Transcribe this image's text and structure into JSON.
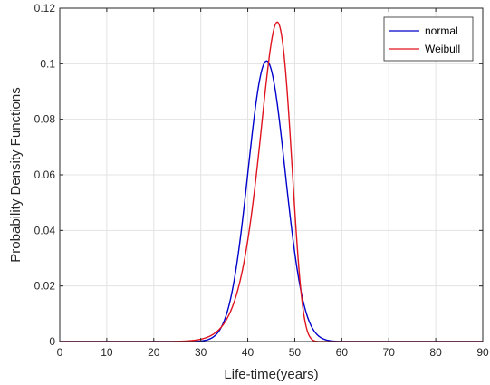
{
  "chart_data": {
    "type": "line",
    "xlabel": "Life-time(years)",
    "ylabel": "Probability Density Functions",
    "xlim": [
      0,
      90
    ],
    "ylim": [
      0,
      0.12
    ],
    "xticks": [
      "0",
      "10",
      "20",
      "30",
      "40",
      "50",
      "60",
      "70",
      "80",
      "90"
    ],
    "yticks": [
      "0",
      "0.02",
      "0.04",
      "0.06",
      "0.08",
      "0.1",
      "0.12"
    ],
    "grid": true,
    "legend_position": "top-right",
    "series": [
      {
        "name": "normal",
        "color": "#0000cc",
        "distribution": "normal",
        "mean": 44,
        "std": 3.95
      },
      {
        "name": "Weibull",
        "color": "#e0141e",
        "distribution": "weibull",
        "scale": 46.5,
        "shape": 14.5
      }
    ]
  }
}
